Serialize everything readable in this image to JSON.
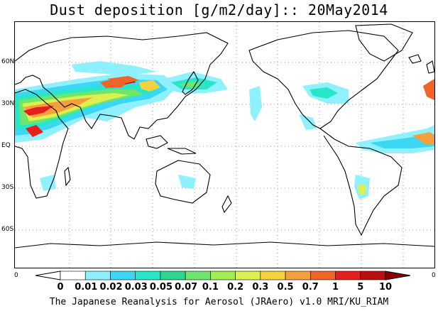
{
  "title": "Dust deposition [g/m2/day]:: 20May2014",
  "credit": "The Japanese Reanalysis for Aerosol (JRAero) v1.0 MRI/KU_RIAM",
  "lat_labels": [
    "60N",
    "30N",
    "EQ",
    "30S",
    "60S"
  ],
  "colorbar": {
    "left_end_label": "0",
    "right_end_label": "0",
    "ticks": [
      "0",
      "0.01",
      "0.02",
      "0.03",
      "0.05",
      "0.07",
      "0.1",
      "0.2",
      "0.3",
      "0.5",
      "0.7",
      "1",
      "5",
      "10"
    ],
    "colors": [
      "#ffffff",
      "#ffffff",
      "#8ff0ff",
      "#3cd7f5",
      "#28e6c8",
      "#2dd68f",
      "#6ee66e",
      "#a0ee50",
      "#dcf050",
      "#f5d23c",
      "#f5a03c",
      "#f06428",
      "#e61e1e",
      "#b90f0f",
      "#8c0000"
    ]
  },
  "colors": {
    "coastline": "#000000",
    "grid": "#888888"
  }
}
